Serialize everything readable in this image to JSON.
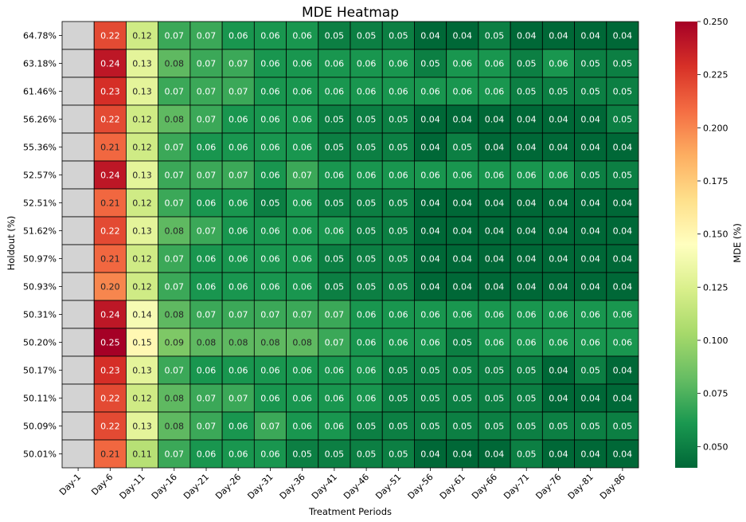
{
  "chart_data": {
    "type": "heatmap",
    "title": "MDE Heatmap",
    "xlabel": "Treatment Periods",
    "ylabel": "Holdout (%)",
    "colorbar_label": "MDE (%)",
    "colormap": "RdYlGn_r",
    "vmin": 0.04,
    "vmax": 0.25,
    "colorbar_ticks": [
      "0.050",
      "0.075",
      "0.100",
      "0.125",
      "0.150",
      "0.175",
      "0.200",
      "0.225",
      "0.250"
    ],
    "missing_color": "#d3d3d3",
    "x": [
      "Day-1",
      "Day-6",
      "Day-11",
      "Day-16",
      "Day-21",
      "Day-26",
      "Day-31",
      "Day-36",
      "Day-41",
      "Day-46",
      "Day-51",
      "Day-56",
      "Day-61",
      "Day-66",
      "Day-71",
      "Day-76",
      "Day-81",
      "Day-86"
    ],
    "y": [
      "64.78%",
      "63.18%",
      "61.46%",
      "56.26%",
      "55.36%",
      "52.57%",
      "52.51%",
      "51.62%",
      "50.97%",
      "50.93%",
      "50.31%",
      "50.20%",
      "50.17%",
      "50.11%",
      "50.09%",
      "50.01%"
    ],
    "values": [
      [
        null,
        0.22,
        0.12,
        0.07,
        0.07,
        0.06,
        0.06,
        0.06,
        0.05,
        0.05,
        0.05,
        0.04,
        0.04,
        0.05,
        0.04,
        0.04,
        0.04,
        0.04
      ],
      [
        null,
        0.24,
        0.13,
        0.08,
        0.07,
        0.07,
        0.06,
        0.06,
        0.06,
        0.06,
        0.06,
        0.05,
        0.06,
        0.06,
        0.05,
        0.06,
        0.05,
        0.05
      ],
      [
        null,
        0.23,
        0.13,
        0.07,
        0.07,
        0.07,
        0.06,
        0.06,
        0.06,
        0.06,
        0.06,
        0.06,
        0.06,
        0.06,
        0.05,
        0.05,
        0.05,
        0.05
      ],
      [
        null,
        0.22,
        0.12,
        0.08,
        0.07,
        0.06,
        0.06,
        0.06,
        0.05,
        0.05,
        0.05,
        0.04,
        0.04,
        0.04,
        0.04,
        0.04,
        0.04,
        0.05
      ],
      [
        null,
        0.21,
        0.12,
        0.07,
        0.06,
        0.06,
        0.06,
        0.06,
        0.05,
        0.05,
        0.05,
        0.04,
        0.05,
        0.04,
        0.04,
        0.04,
        0.04,
        0.04
      ],
      [
        null,
        0.24,
        0.13,
        0.07,
        0.07,
        0.07,
        0.06,
        0.07,
        0.06,
        0.06,
        0.06,
        0.06,
        0.06,
        0.06,
        0.06,
        0.06,
        0.05,
        0.05
      ],
      [
        null,
        0.21,
        0.12,
        0.07,
        0.06,
        0.06,
        0.05,
        0.06,
        0.05,
        0.05,
        0.05,
        0.04,
        0.04,
        0.04,
        0.04,
        0.04,
        0.04,
        0.04
      ],
      [
        null,
        0.22,
        0.13,
        0.08,
        0.07,
        0.06,
        0.06,
        0.06,
        0.06,
        0.05,
        0.05,
        0.04,
        0.04,
        0.04,
        0.04,
        0.04,
        0.04,
        0.04
      ],
      [
        null,
        0.21,
        0.12,
        0.07,
        0.06,
        0.06,
        0.06,
        0.06,
        0.05,
        0.05,
        0.05,
        0.04,
        0.04,
        0.04,
        0.04,
        0.04,
        0.04,
        0.04
      ],
      [
        null,
        0.2,
        0.12,
        0.07,
        0.06,
        0.06,
        0.06,
        0.06,
        0.05,
        0.05,
        0.05,
        0.04,
        0.04,
        0.04,
        0.04,
        0.04,
        0.04,
        0.04
      ],
      [
        null,
        0.24,
        0.14,
        0.08,
        0.07,
        0.07,
        0.07,
        0.07,
        0.07,
        0.06,
        0.06,
        0.06,
        0.06,
        0.06,
        0.06,
        0.06,
        0.06,
        0.06
      ],
      [
        null,
        0.25,
        0.15,
        0.09,
        0.08,
        0.08,
        0.08,
        0.08,
        0.07,
        0.06,
        0.06,
        0.06,
        0.05,
        0.06,
        0.06,
        0.06,
        0.06,
        0.06
      ],
      [
        null,
        0.23,
        0.13,
        0.07,
        0.06,
        0.06,
        0.06,
        0.06,
        0.06,
        0.06,
        0.05,
        0.05,
        0.05,
        0.05,
        0.05,
        0.04,
        0.05,
        0.04
      ],
      [
        null,
        0.22,
        0.12,
        0.08,
        0.07,
        0.07,
        0.06,
        0.06,
        0.06,
        0.06,
        0.05,
        0.05,
        0.05,
        0.05,
        0.05,
        0.04,
        0.04,
        0.04
      ],
      [
        null,
        0.22,
        0.13,
        0.08,
        0.07,
        0.06,
        0.07,
        0.06,
        0.06,
        0.05,
        0.05,
        0.05,
        0.05,
        0.05,
        0.05,
        0.05,
        0.05,
        0.05
      ],
      [
        null,
        0.21,
        0.11,
        0.07,
        0.06,
        0.06,
        0.06,
        0.05,
        0.05,
        0.05,
        0.05,
        0.04,
        0.04,
        0.04,
        0.05,
        0.04,
        0.04,
        0.04
      ]
    ]
  }
}
